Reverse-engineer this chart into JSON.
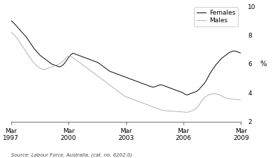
{
  "ylabel": "%",
  "source_text": "Source: Labour Force, Australia, (cat. no. 6202.0)",
  "ylim": [
    2,
    10
  ],
  "yticks": [
    2,
    4,
    6,
    8,
    10
  ],
  "xticklabels": [
    "Mar\n1997",
    "Mar\n2000",
    "Mar\n2003",
    "Mar\n2006",
    "Mar\n2009"
  ],
  "legend_entries": [
    "Females",
    "Males"
  ],
  "female_color": "#000000",
  "male_color": "#b0b0b0",
  "background_color": "#ffffff",
  "females": [
    9.0,
    8.9,
    8.75,
    8.6,
    8.45,
    8.3,
    8.15,
    8.0,
    7.85,
    7.65,
    7.45,
    7.25,
    7.05,
    6.9,
    6.75,
    6.6,
    6.5,
    6.4,
    6.3,
    6.2,
    6.1,
    6.0,
    5.95,
    5.9,
    5.85,
    5.8,
    5.85,
    5.95,
    6.1,
    6.3,
    6.5,
    6.65,
    6.75,
    6.7,
    6.65,
    6.6,
    6.55,
    6.5,
    6.45,
    6.4,
    6.35,
    6.3,
    6.25,
    6.2,
    6.15,
    6.1,
    6.0,
    5.9,
    5.8,
    5.7,
    5.6,
    5.5,
    5.45,
    5.4,
    5.35,
    5.3,
    5.25,
    5.2,
    5.15,
    5.1,
    5.05,
    5.0,
    4.95,
    4.9,
    4.85,
    4.8,
    4.75,
    4.7,
    4.65,
    4.6,
    4.55,
    4.5,
    4.45,
    4.4,
    4.4,
    4.45,
    4.5,
    4.55,
    4.55,
    4.5,
    4.45,
    4.4,
    4.35,
    4.3,
    4.25,
    4.2,
    4.15,
    4.1,
    4.05,
    4.0,
    3.9,
    3.85,
    3.9,
    3.95,
    4.0,
    4.05,
    4.1,
    4.2,
    4.35,
    4.5,
    4.65,
    4.85,
    5.1,
    5.35,
    5.55,
    5.75,
    5.95,
    6.1,
    6.25,
    6.4,
    6.5,
    6.6,
    6.7,
    6.8,
    6.85,
    6.9,
    6.9,
    6.85,
    6.8,
    6.75
  ],
  "males": [
    8.2,
    8.1,
    7.95,
    7.8,
    7.6,
    7.4,
    7.2,
    7.0,
    6.8,
    6.6,
    6.4,
    6.2,
    6.05,
    5.9,
    5.8,
    5.7,
    5.65,
    5.6,
    5.65,
    5.7,
    5.75,
    5.8,
    5.85,
    5.9,
    5.95,
    6.0,
    6.1,
    6.2,
    6.35,
    6.5,
    6.55,
    6.5,
    6.45,
    6.35,
    6.25,
    6.15,
    6.05,
    5.95,
    5.85,
    5.75,
    5.65,
    5.55,
    5.45,
    5.35,
    5.25,
    5.15,
    5.05,
    4.95,
    4.85,
    4.75,
    4.65,
    4.55,
    4.45,
    4.35,
    4.25,
    4.15,
    4.05,
    3.95,
    3.85,
    3.75,
    3.7,
    3.65,
    3.6,
    3.55,
    3.5,
    3.45,
    3.4,
    3.35,
    3.3,
    3.25,
    3.2,
    3.15,
    3.1,
    3.05,
    3.0,
    2.95,
    2.9,
    2.85,
    2.8,
    2.78,
    2.76,
    2.75,
    2.74,
    2.73,
    2.72,
    2.71,
    2.7,
    2.69,
    2.68,
    2.67,
    2.66,
    2.65,
    2.68,
    2.72,
    2.78,
    2.85,
    2.95,
    3.1,
    3.3,
    3.5,
    3.65,
    3.75,
    3.85,
    3.9,
    3.93,
    3.94,
    3.93,
    3.9,
    3.85,
    3.78,
    3.7,
    3.65,
    3.62,
    3.6,
    3.58,
    3.56,
    3.55,
    3.54,
    3.52,
    3.5
  ],
  "n_points": 120
}
